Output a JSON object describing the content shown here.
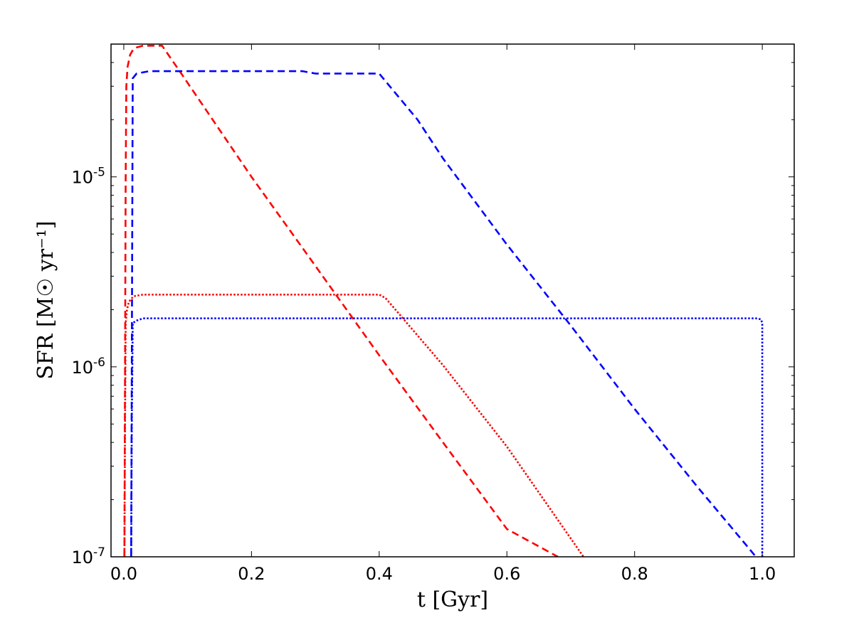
{
  "chart_data": {
    "type": "line",
    "title": "",
    "xlabel": "t [Gyr]",
    "ylabel": "SFR [M☉ yr⁻¹]",
    "yscale": "log",
    "xlim": [
      -0.02,
      1.05
    ],
    "ylim": [
      1e-07,
      5e-05
    ],
    "grid": false,
    "legend": "none",
    "x_ticks": [
      {
        "value": 0.0,
        "label": "0.0"
      },
      {
        "value": 0.2,
        "label": "0.2"
      },
      {
        "value": 0.4,
        "label": "0.4"
      },
      {
        "value": 0.6,
        "label": "0.6"
      },
      {
        "value": 0.8,
        "label": "0.8"
      },
      {
        "value": 1.0,
        "label": "1.0"
      }
    ],
    "y_ticks": [
      {
        "value": 1e-07,
        "base": "10",
        "exp": "-7"
      },
      {
        "value": 1e-06,
        "base": "10",
        "exp": "-6"
      },
      {
        "value": 1e-05,
        "base": "10",
        "exp": "-5"
      }
    ],
    "series": [
      {
        "color": "#ff0000",
        "style": "dashed",
        "x": [
          0.001,
          0.002,
          0.003,
          0.004,
          0.006,
          0.01,
          0.015,
          0.02,
          0.03,
          0.06,
          0.09,
          0.2,
          0.3,
          0.4,
          0.5,
          0.6,
          0.68
        ],
        "y": [
          1e-07,
          1e-06,
          1e-05,
          3e-05,
          3.8e-05,
          4.4e-05,
          4.7e-05,
          4.8e-05,
          4.9e-05,
          4.9e-05,
          3.5e-05,
          1e-05,
          3.4e-06,
          1.15e-06,
          4e-07,
          1.4e-07,
          1e-07
        ]
      },
      {
        "color": "#0000ff",
        "style": "dashed",
        "x": [
          0.0115,
          0.0125,
          0.014,
          0.02,
          0.04,
          0.1,
          0.28,
          0.3,
          0.4,
          0.46,
          0.5,
          0.6,
          0.7,
          0.8,
          0.9,
          0.95,
          0.99
        ],
        "y": [
          1e-07,
          1e-06,
          3.3e-05,
          3.5e-05,
          3.6e-05,
          3.6e-05,
          3.6e-05,
          3.5e-05,
          3.5e-05,
          2e-05,
          1.25e-05,
          4.4e-06,
          1.65e-06,
          6e-07,
          2.3e-07,
          1.45e-07,
          1e-07
        ]
      },
      {
        "color": "#ff0000",
        "style": "dotted",
        "x": [
          0.001,
          0.002,
          0.003,
          0.005,
          0.008,
          0.015,
          0.03,
          0.2,
          0.4,
          0.41,
          0.5,
          0.6,
          0.72
        ],
        "y": [
          1e-07,
          5e-07,
          1.7e-06,
          2e-06,
          2.2e-06,
          2.35e-06,
          2.4e-06,
          2.4e-06,
          2.4e-06,
          2.3e-06,
          1.02e-06,
          3.8e-07,
          1e-07
        ]
      },
      {
        "color": "#0000ff",
        "style": "dotted",
        "x": [
          0.0115,
          0.0125,
          0.014,
          0.02,
          0.03,
          0.5,
          0.99,
          0.998,
          1.0,
          1.0
        ],
        "y": [
          1e-07,
          5e-07,
          1.7e-06,
          1.75e-06,
          1.8e-06,
          1.8e-06,
          1.8e-06,
          1.78e-06,
          1.7e-06,
          1e-07
        ]
      }
    ]
  }
}
